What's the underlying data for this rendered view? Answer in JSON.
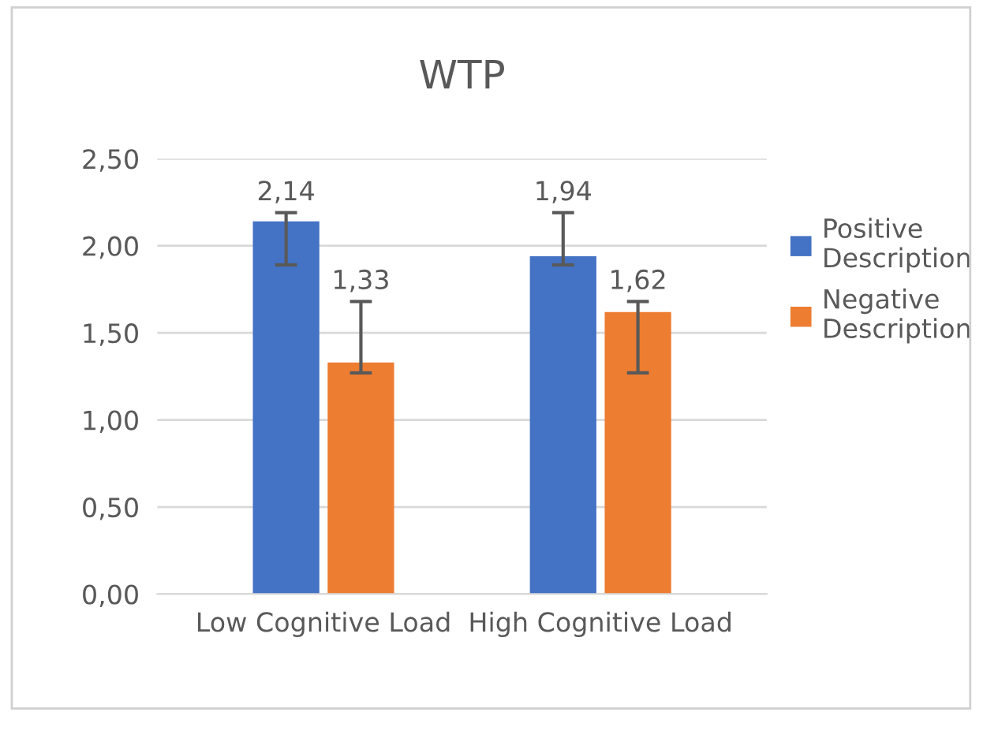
{
  "chart_data": {
    "type": "bar",
    "title": "WTP",
    "categories": [
      "Low Cognitive Load",
      "High Cognitive Load"
    ],
    "series": [
      {
        "name": "Positive Description",
        "color": "#4472c4",
        "values": [
          2.14,
          1.94
        ],
        "value_labels": [
          "2,14",
          "1,94"
        ],
        "errors": [
          [
            1.89,
            2.19
          ],
          [
            1.89,
            2.19
          ]
        ]
      },
      {
        "name": "Negative Description",
        "color": "#ed7d31",
        "values": [
          1.33,
          1.62
        ],
        "value_labels": [
          "1,33",
          "1,62"
        ],
        "errors": [
          [
            1.27,
            1.68
          ],
          [
            1.27,
            1.68
          ]
        ]
      }
    ],
    "ylim": [
      0,
      2.5
    ],
    "yticks": [
      {
        "value": 0,
        "label": "0,00"
      },
      {
        "value": 0.5,
        "label": "0,50"
      },
      {
        "value": 1,
        "label": "1,00"
      },
      {
        "value": 1.5,
        "label": "1,50"
      },
      {
        "value": 2,
        "label": "2,00"
      },
      {
        "value": 2.5,
        "label": "2,50"
      }
    ],
    "grid": "y",
    "legend": "right"
  }
}
